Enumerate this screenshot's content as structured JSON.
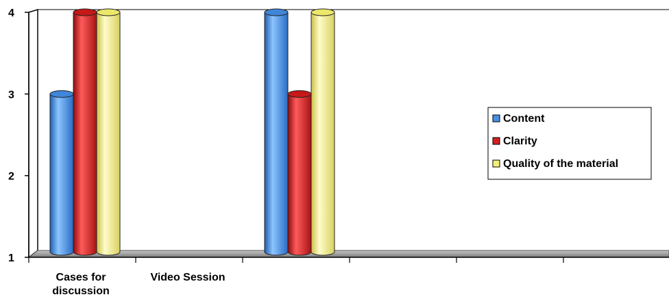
{
  "chart_data": {
    "type": "bar",
    "style": "3d-cylinder",
    "categories": [
      [
        "Cases for",
        "discussion"
      ],
      [
        "Video Session"
      ],
      [
        ""
      ],
      [
        ""
      ],
      [
        ""
      ],
      [
        ""
      ]
    ],
    "series": [
      {
        "name": "Content",
        "values": [
          3,
          4,
          null,
          null,
          null,
          null
        ],
        "color": "#4a90e2"
      },
      {
        "name": "Clarity",
        "values": [
          4,
          3,
          null,
          null,
          null,
          null
        ],
        "color": "#d42020"
      },
      {
        "name": "Quality of the material",
        "values": [
          4,
          4,
          null,
          null,
          null,
          null
        ],
        "color": "#f4ef7a"
      }
    ],
    "y_ticks": [
      "1",
      "2",
      "3",
      "4"
    ],
    "ylim": [
      1,
      4
    ],
    "grid": false,
    "legend_position": "right"
  }
}
